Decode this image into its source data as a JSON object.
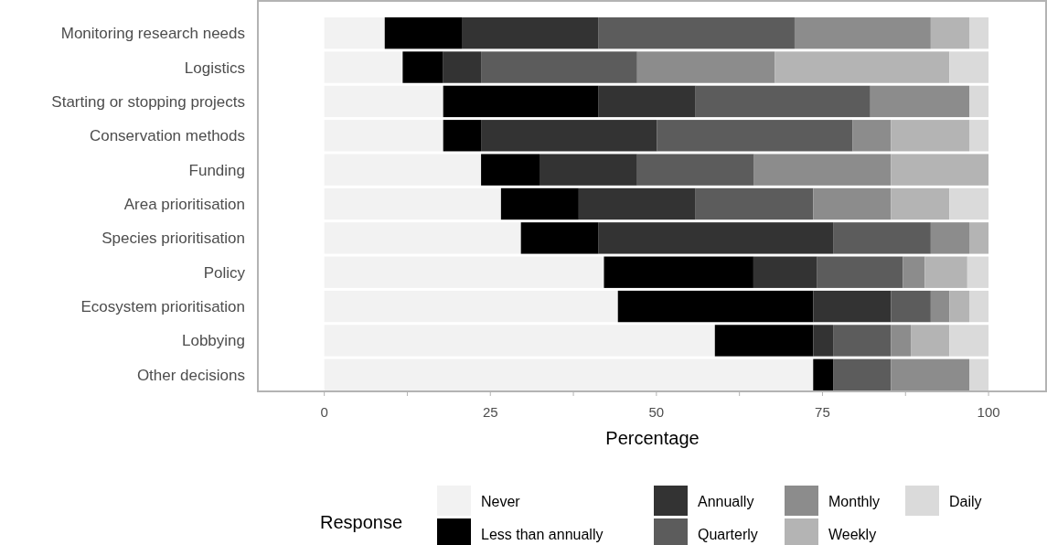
{
  "chart_data": {
    "type": "bar",
    "orientation": "horizontal",
    "stacked": true,
    "xlabel": "Percentage",
    "legend_title": "Response",
    "legend": "bottom",
    "categories": [
      "Monitoring research needs",
      "Logistics",
      "Starting or stopping projects",
      "Conservation methods",
      "Funding",
      "Area prioritisation",
      "Species prioritisation",
      "Policy",
      "Ecosystem prioritisation",
      "Lobbying",
      "Other decisions"
    ],
    "xlim": [
      -10,
      108.8
    ],
    "xticks": [
      0,
      {
        "value": 12.5,
        "label": null
      },
      25,
      {
        "value": 37.5,
        "label": null
      },
      50,
      {
        "value": 62.5,
        "label": null
      },
      75,
      {
        "value": 87.5,
        "label": null
      },
      100
    ],
    "series": [
      {
        "name": "Never",
        "color": "#f2f2f2",
        "values": [
          9.1,
          11.8,
          17.9,
          17.9,
          23.6,
          26.6,
          29.6,
          42.1,
          44.2,
          58.8,
          73.6
        ]
      },
      {
        "name": "Less than annually",
        "color": "#000000",
        "values": [
          11.6,
          6.1,
          23.4,
          5.7,
          8.8,
          11.7,
          11.7,
          22.5,
          29.4,
          14.8,
          3.0
        ]
      },
      {
        "name": "Annually",
        "color": "#333333",
        "values": [
          20.6,
          5.7,
          14.6,
          26.5,
          14.7,
          17.6,
          35.3,
          9.6,
          11.7,
          3.0,
          0
        ]
      },
      {
        "name": "Quarterly",
        "color": "#5c5c5c",
        "values": [
          29.5,
          23.5,
          26.3,
          29.4,
          17.6,
          17.7,
          14.7,
          12.9,
          6.0,
          8.7,
          8.7
        ]
      },
      {
        "name": "Monthly",
        "color": "#8c8c8c",
        "values": [
          20.5,
          20.7,
          14.9,
          5.8,
          20.6,
          11.7,
          5.8,
          3.3,
          2.8,
          3.0,
          11.8
        ]
      },
      {
        "name": "Weekly",
        "color": "#b4b4b4",
        "values": [
          5.8,
          26.3,
          0,
          11.8,
          14.7,
          8.8,
          2.9,
          6.4,
          3.0,
          5.8,
          0
        ]
      },
      {
        "name": "Daily",
        "color": "#dadada",
        "values": [
          2.9,
          5.9,
          2.9,
          2.9,
          0,
          5.9,
          0,
          3.2,
          2.9,
          5.9,
          2.9
        ]
      }
    ]
  }
}
